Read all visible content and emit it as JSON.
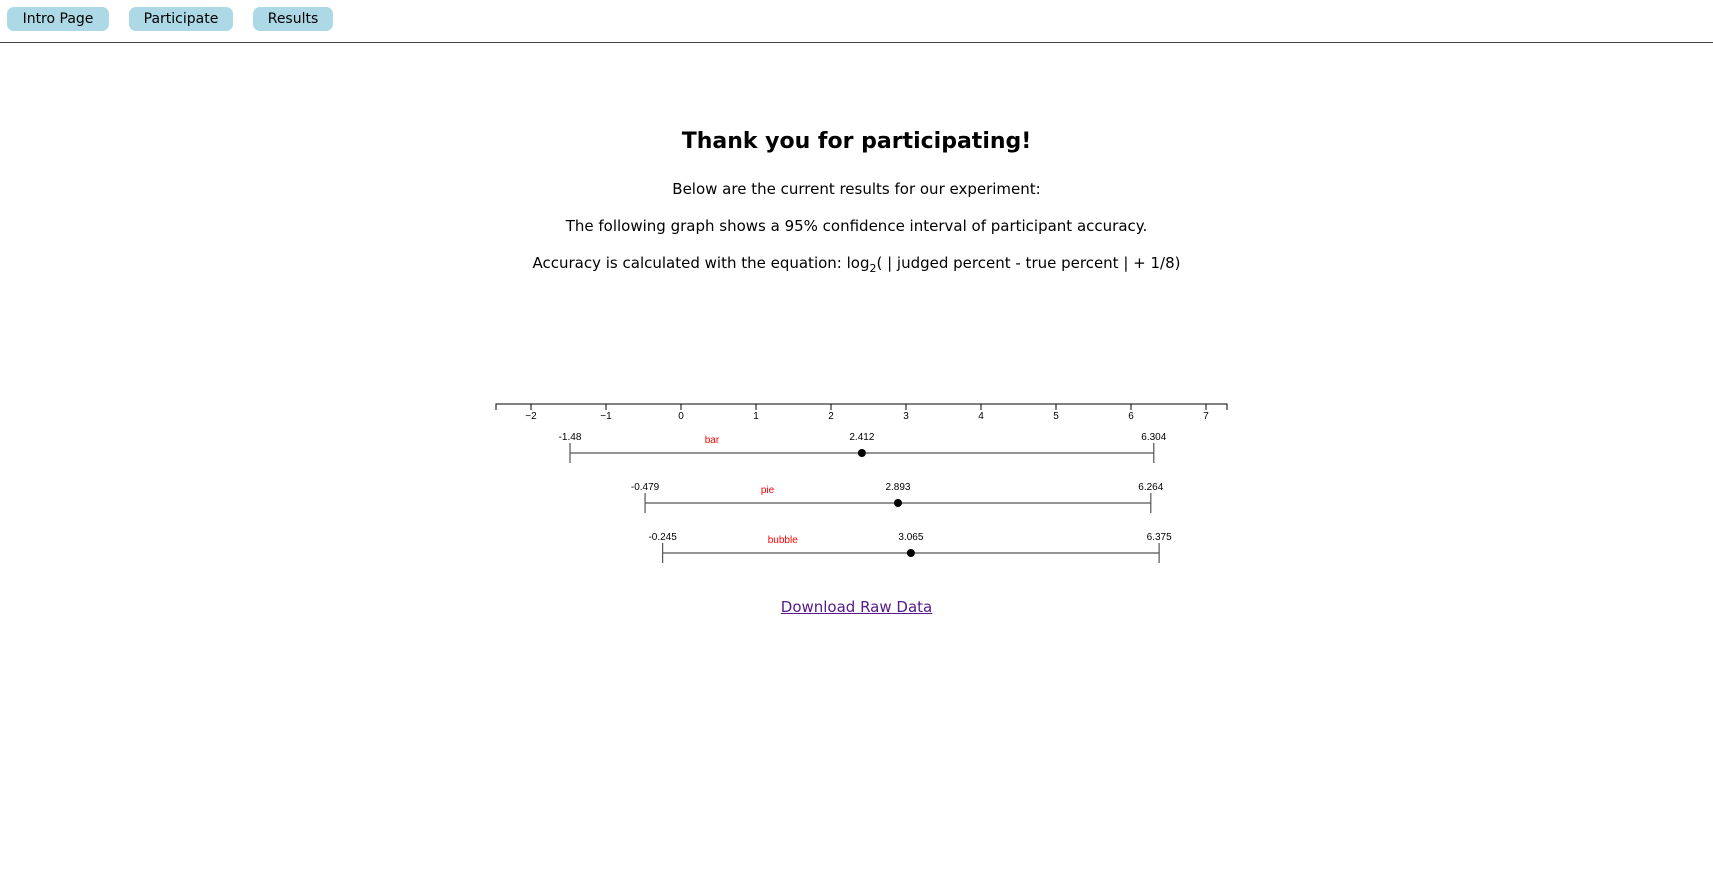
{
  "nav": {
    "intro_label": "Intro Page",
    "participate_label": "Participate",
    "results_label": "Results"
  },
  "main": {
    "title": "Thank you for participating!",
    "para1": "Below are the current results for our experiment:",
    "para2": "The following graph shows a 95% confidence interval of participant accuracy.",
    "para3_prefix": "Accuracy is calculated with the equation: log",
    "para3_sub": "2",
    "para3_suffix": "( | judged percent - true percent | + 1/8)",
    "download_label": "Download Raw Data"
  },
  "colors": {
    "nav_button": "#add8e6",
    "series_label": "#ff0000",
    "link": "#551a8b"
  },
  "chart_data": {
    "type": "interval",
    "xlim": [
      -2.5,
      7.3
    ],
    "ticks": [
      "−2",
      "−1",
      "0",
      "1",
      "2",
      "3",
      "4",
      "5",
      "6",
      "7"
    ],
    "tick_values": [
      -2,
      -1,
      0,
      1,
      2,
      3,
      4,
      5,
      6,
      7
    ],
    "series": [
      {
        "name": "bar",
        "low": -1.48,
        "mean": 2.412,
        "high": 6.304,
        "low_label": "-1.48",
        "mean_label": "2.412",
        "high_label": "6.304"
      },
      {
        "name": "pie",
        "low": -0.479,
        "mean": 2.893,
        "high": 6.264,
        "low_label": "-0.479",
        "mean_label": "2.893",
        "high_label": "6.264"
      },
      {
        "name": "bubble",
        "low": -0.245,
        "mean": 3.065,
        "high": 6.375,
        "low_label": "-0.245",
        "mean_label": "3.065",
        "high_label": "6.375"
      }
    ]
  }
}
